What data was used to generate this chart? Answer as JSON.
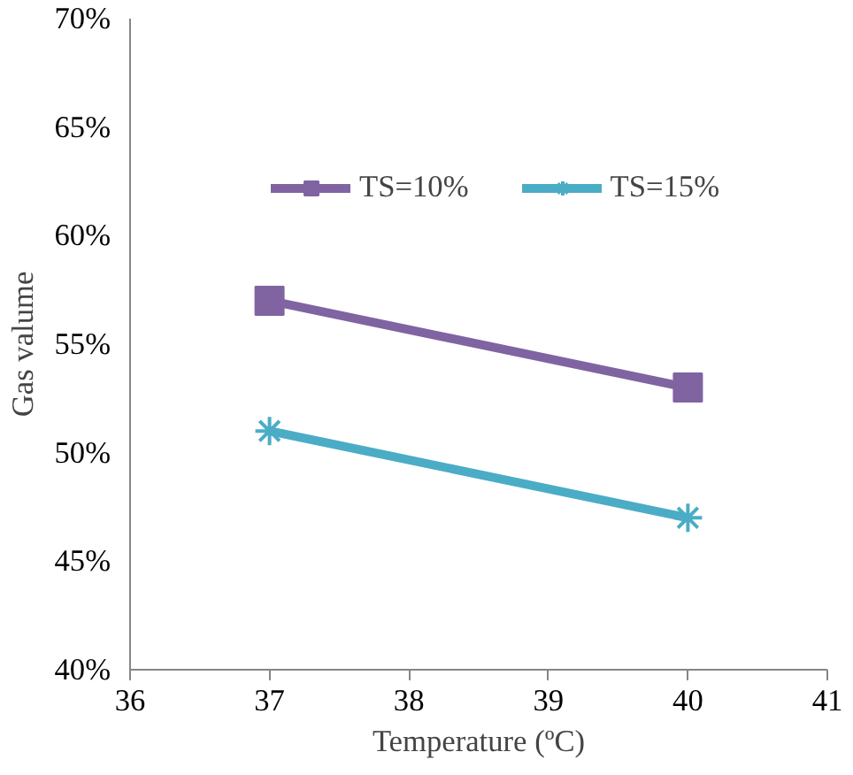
{
  "chart_data": {
    "type": "line",
    "xlabel": "Temperature (ºC)",
    "ylabel": "Gas valume",
    "x": [
      37,
      40
    ],
    "series": [
      {
        "name": "TS=10%",
        "color": "#8064a2",
        "values": [
          57,
          53
        ],
        "marker": "square"
      },
      {
        "name": "TS=15%",
        "color": "#4bacc6",
        "values": [
          51,
          47
        ],
        "marker": "cross"
      }
    ],
    "xlim": [
      36,
      41
    ],
    "xticks": [
      36,
      37,
      38,
      39,
      40,
      41
    ],
    "ylim": [
      40,
      70
    ],
    "yticks": [
      {
        "value": 40,
        "label": "40%"
      },
      {
        "value": 45,
        "label": "45%"
      },
      {
        "value": 50,
        "label": "50%"
      },
      {
        "value": 55,
        "label": "55%"
      },
      {
        "value": 60,
        "label": "60%"
      },
      {
        "value": 65,
        "label": "65%"
      },
      {
        "value": 70,
        "label": "70%"
      }
    ],
    "grid": false,
    "legend": "top",
    "line_style": "solid"
  }
}
